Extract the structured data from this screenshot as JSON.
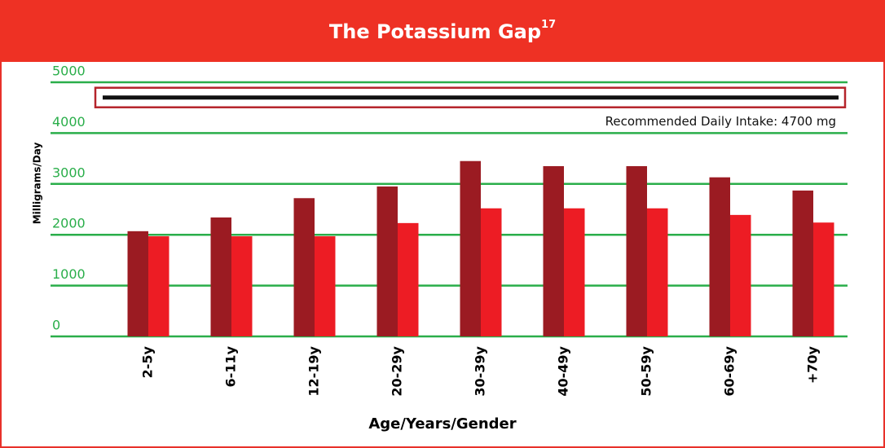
{
  "chart_data": {
    "type": "bar",
    "title": "The Potassium Gap",
    "title_superscript": "17",
    "y_label": "Milligrams/Day",
    "x_label": "Age/Years/Gender",
    "categories": [
      "2-5y",
      "6-11y",
      "12-19y",
      "20-29y",
      "30-39y",
      "40-49y",
      "50-59y",
      "60-69y",
      "+70y"
    ],
    "series": [
      {
        "color": "#9b1b22",
        "values": [
          2070,
          2340,
          2720,
          2950,
          3450,
          3350,
          3350,
          3130,
          2870
        ]
      },
      {
        "color": "#ed1c24",
        "values": [
          1970,
          1970,
          1970,
          2230,
          2520,
          2520,
          2520,
          2390,
          2240
        ]
      }
    ],
    "ylim": [
      0,
      5000
    ],
    "yticks": [
      0,
      1000,
      2000,
      3000,
      4000,
      5000
    ],
    "grid": true,
    "grid_color": "#2aae4a",
    "reference_line": {
      "value": 4700,
      "label": "Recommended Daily Intake: 4700 mg"
    }
  }
}
